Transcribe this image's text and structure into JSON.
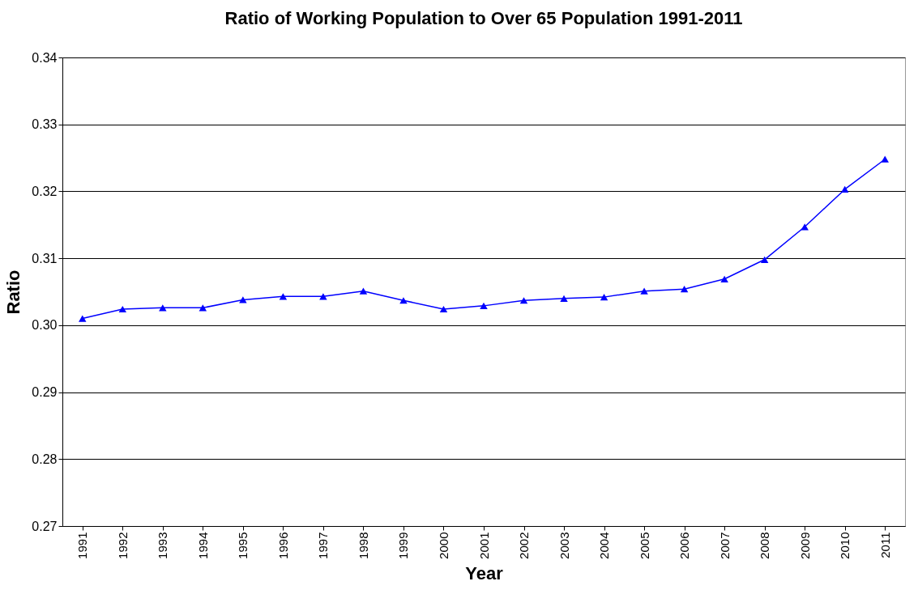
{
  "chart_data": {
    "type": "line",
    "title": "Ratio of Working Population to Over 65 Population 1991-2011",
    "xlabel": "Year",
    "ylabel": "Ratio",
    "categories": [
      "1991",
      "1992",
      "1993",
      "1994",
      "1995",
      "1996",
      "1997",
      "1998",
      "1999",
      "2000",
      "2001",
      "2002",
      "2003",
      "2004",
      "2005",
      "2006",
      "2007",
      "2008",
      "2009",
      "2010",
      "2011"
    ],
    "series": [
      {
        "color": "#0000ff",
        "values": [
          0.301,
          0.3024,
          0.3026,
          0.3026,
          0.3038,
          0.3043,
          0.3043,
          0.3051,
          0.3037,
          0.3024,
          0.3029,
          0.3037,
          0.304,
          0.3042,
          0.3051,
          0.3054,
          0.3069,
          0.3098,
          0.3147,
          0.3203,
          0.3248
        ]
      }
    ],
    "ylim": [
      0.27,
      0.34
    ],
    "yticks": [
      {
        "value": 0.27,
        "label": "0.27"
      },
      {
        "value": 0.28,
        "label": "0.28"
      },
      {
        "value": 0.29,
        "label": "0.29"
      },
      {
        "value": 0.3,
        "label": "0.30"
      },
      {
        "value": 0.31,
        "label": "0.31"
      },
      {
        "value": 0.32,
        "label": "0.32"
      },
      {
        "value": 0.33,
        "label": "0.33"
      },
      {
        "value": 0.34,
        "label": "0.34"
      }
    ],
    "grid": "y",
    "marker": "triangle",
    "line_style": "solid"
  }
}
